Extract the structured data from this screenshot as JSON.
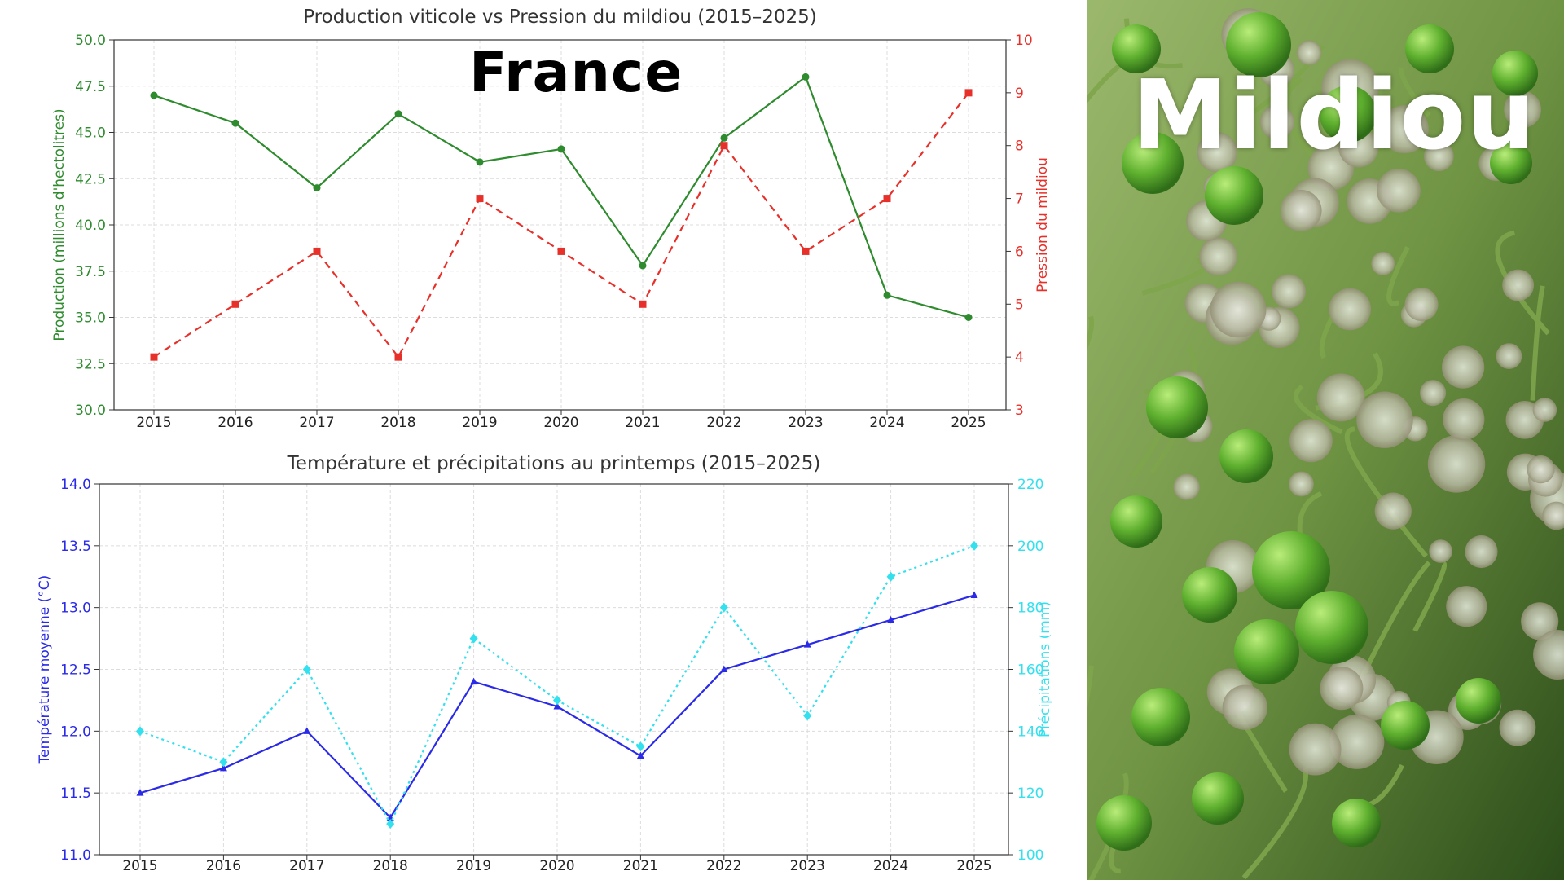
{
  "overlay": {
    "country": "France",
    "photo_label": "Mildiou"
  },
  "chart_data": [
    {
      "type": "line",
      "title": "Production viticole vs Pression du mildiou (2015–2025)",
      "x": [
        2015,
        2016,
        2017,
        2018,
        2019,
        2020,
        2021,
        2022,
        2023,
        2024,
        2025
      ],
      "xticks": [
        "2015",
        "2016",
        "2017",
        "2018",
        "2019",
        "2020",
        "2021",
        "2022",
        "2023",
        "2024",
        "2025"
      ],
      "y_left": {
        "label": "Production (millions d'hectolitres)",
        "range": [
          30.0,
          50.0
        ],
        "ticks": [
          "30.0",
          "32.5",
          "35.0",
          "37.5",
          "40.0",
          "42.5",
          "45.0",
          "47.5",
          "50.0"
        ],
        "color": "#2e8b2e"
      },
      "y_right": {
        "label": "Pression du mildiou",
        "range": [
          3,
          10
        ],
        "ticks": [
          "3",
          "4",
          "5",
          "6",
          "7",
          "8",
          "9",
          "10"
        ],
        "color": "#e8302a"
      },
      "series": [
        {
          "axis": "left",
          "values": [
            47.0,
            45.5,
            42.0,
            46.0,
            43.4,
            44.1,
            37.8,
            44.7,
            48.0,
            36.2,
            35.0
          ],
          "color": "#2e8b2e",
          "style": "solid",
          "marker": "circle"
        },
        {
          "axis": "right",
          "values": [
            4,
            5,
            6,
            4,
            7,
            6,
            5,
            8,
            6,
            7,
            9
          ],
          "color": "#e8302a",
          "style": "dashed",
          "marker": "square"
        }
      ],
      "grid": true
    },
    {
      "type": "line",
      "title": "Température et précipitations au printemps (2015–2025)",
      "x": [
        2015,
        2016,
        2017,
        2018,
        2019,
        2020,
        2021,
        2022,
        2023,
        2024,
        2025
      ],
      "xticks": [
        "2015",
        "2016",
        "2017",
        "2018",
        "2019",
        "2020",
        "2021",
        "2022",
        "2023",
        "2024",
        "2025"
      ],
      "y_left": {
        "label": "Température moyenne (°C)",
        "range": [
          11.0,
          14.0
        ],
        "ticks": [
          "11.0",
          "11.5",
          "12.0",
          "12.5",
          "13.0",
          "13.5",
          "14.0"
        ],
        "color": "#2a2ae8"
      },
      "y_right": {
        "label": "Précipitations (mm)",
        "range": [
          100,
          220
        ],
        "ticks": [
          "100",
          "120",
          "140",
          "160",
          "180",
          "200",
          "220"
        ],
        "color": "#33e0ee"
      },
      "series": [
        {
          "axis": "left",
          "values": [
            11.5,
            11.7,
            12.0,
            11.3,
            12.4,
            12.2,
            11.8,
            12.5,
            12.7,
            12.9,
            13.1
          ],
          "color": "#2a2ae8",
          "style": "solid",
          "marker": "triangle"
        },
        {
          "axis": "right",
          "values": [
            140,
            130,
            160,
            110,
            170,
            150,
            135,
            180,
            145,
            190,
            200
          ],
          "color": "#33e0ee",
          "style": "dotted",
          "marker": "diamond"
        }
      ],
      "grid": true
    }
  ]
}
